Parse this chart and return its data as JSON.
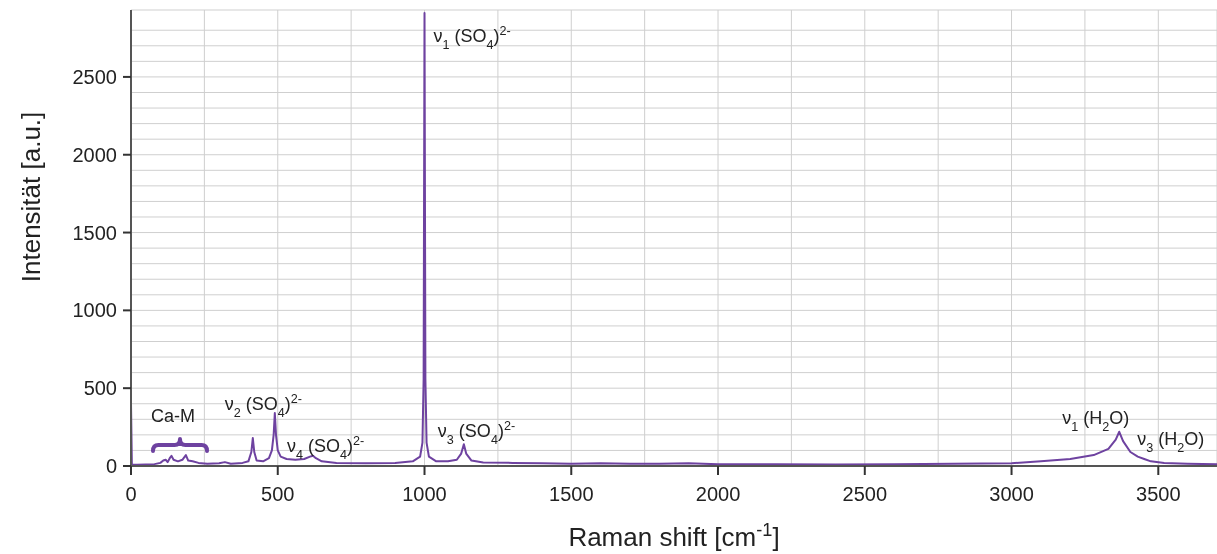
{
  "chart_data": {
    "type": "line",
    "xlabel": "Raman shift [cm$^{-1}$]",
    "ylabel": "Intensität [a.u.]",
    "x": [
      0,
      3,
      20,
      50,
      80,
      100,
      110,
      118,
      125,
      132,
      138,
      145,
      160,
      175,
      187,
      195,
      210,
      230,
      260,
      300,
      320,
      340,
      380,
      400,
      410,
      415,
      420,
      428,
      450,
      470,
      480,
      486,
      490,
      494,
      500,
      510,
      530,
      560,
      590,
      610,
      620,
      630,
      650,
      700,
      800,
      900,
      960,
      985,
      993,
      997,
      1000,
      1003,
      1007,
      1015,
      1040,
      1080,
      1110,
      1125,
      1134,
      1142,
      1160,
      1200,
      1300,
      1400,
      1500,
      1600,
      1700,
      1800,
      1900,
      2000,
      2200,
      2400,
      2600,
      2800,
      3000,
      3100,
      3200,
      3280,
      3330,
      3355,
      3367,
      3380,
      3405,
      3430,
      3452,
      3475,
      3520,
      3600,
      3700
    ],
    "series": [
      {
        "color": "#6e42a0",
        "values": [
          400,
          8,
          8,
          10,
          12,
          20,
          35,
          40,
          25,
          50,
          65,
          40,
          30,
          40,
          70,
          35,
          30,
          20,
          15,
          18,
          25,
          15,
          20,
          30,
          90,
          180,
          90,
          35,
          30,
          50,
          100,
          200,
          340,
          200,
          100,
          60,
          45,
          40,
          45,
          60,
          66,
          50,
          30,
          20,
          18,
          20,
          30,
          60,
          150,
          560,
          2910,
          560,
          150,
          60,
          30,
          30,
          40,
          80,
          140,
          80,
          35,
          22,
          20,
          18,
          15,
          18,
          15,
          15,
          18,
          12,
          12,
          10,
          12,
          14,
          18,
          30,
          45,
          70,
          110,
          170,
          220,
          160,
          90,
          60,
          45,
          30,
          20,
          15,
          12
        ]
      }
    ],
    "xlim": [
      0,
      3700
    ],
    "ylim": [
      0,
      2930
    ],
    "xticks": [
      0,
      {
        "value": 250,
        "label": null
      },
      500,
      {
        "value": 750,
        "label": null
      },
      1000,
      {
        "value": 1250,
        "label": null
      },
      1500,
      {
        "value": 1750,
        "label": null
      },
      2000,
      {
        "value": 2250,
        "label": null
      },
      2500,
      {
        "value": 2750,
        "label": null
      },
      3000,
      {
        "value": 3250,
        "label": null
      },
      3500
    ],
    "yticks": [
      0,
      {
        "value": 100,
        "label": null
      },
      {
        "value": 200,
        "label": null
      },
      {
        "value": 300,
        "label": null
      },
      {
        "value": 400,
        "label": null
      },
      500,
      {
        "value": 600,
        "label": null
      },
      {
        "value": 700,
        "label": null
      },
      {
        "value": 800,
        "label": null
      },
      {
        "value": 900,
        "label": null
      },
      1000,
      {
        "value": 1100,
        "label": null
      },
      {
        "value": 1200,
        "label": null
      },
      {
        "value": 1300,
        "label": null
      },
      {
        "value": 1400,
        "label": null
      },
      1500,
      {
        "value": 1600,
        "label": null
      },
      {
        "value": 1700,
        "label": null
      },
      {
        "value": 1800,
        "label": null
      },
      {
        "value": 1900,
        "label": null
      },
      2000,
      {
        "value": 2100,
        "label": null
      },
      {
        "value": 2200,
        "label": null
      },
      {
        "value": 2300,
        "label": null
      },
      {
        "value": 2400,
        "label": null
      },
      2500,
      {
        "value": 2600,
        "label": null
      },
      {
        "value": 2700,
        "label": null
      },
      {
        "value": 2800,
        "label": null
      }
    ],
    "grid": true,
    "marker": "none",
    "line_style": "solid",
    "annotations": [
      "Ca-M",
      {
        "text": "ν$_{2}$ (SO$_{4}$)$^{2-}$",
        "x": 490,
        "y": 340
      },
      {
        "text": "ν$_{4}$ (SO$_{4}$)$^{2-}$",
        "x": 620,
        "y": 66
      },
      {
        "text": "ν$_{1}$ (SO$_{4}$)$^{2-}$",
        "x": 1000,
        "y": 2910
      },
      {
        "text": "ν$_{3}$ (SO$_{4}$)$^{2-}$",
        "x": 1134,
        "y": 140
      },
      {
        "text": "ν$_{1}$ (H$_{2}$O)",
        "x": 3367,
        "y": 220
      },
      {
        "text": "ν$_{3}$ (H$_{2}$O)",
        "x": 3452,
        "y": 45
      }
    ]
  }
}
